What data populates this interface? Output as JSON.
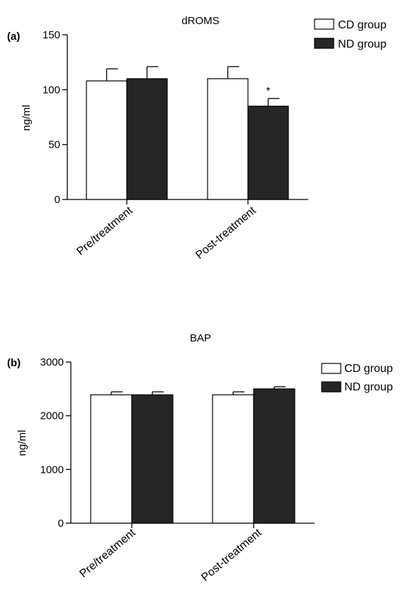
{
  "chart_data": [
    {
      "panel_label": "(a)",
      "type": "bar",
      "title": "dROMS",
      "ylabel": "ng/ml",
      "xlabel": "",
      "categories": [
        "Pre/treatment",
        "Post-treatment"
      ],
      "ylim": [
        0,
        150
      ],
      "yticks": [
        0,
        50,
        100,
        150
      ],
      "grid": false,
      "legend_position": "top-right",
      "series": [
        {
          "name": "CD group",
          "fill": "#ffffff",
          "values": [
            108,
            110
          ],
          "errors": [
            11,
            11
          ]
        },
        {
          "name": "ND group",
          "fill": "#262626",
          "values": [
            110,
            85
          ],
          "errors": [
            11,
            7
          ]
        }
      ],
      "annotations": [
        {
          "text": "*",
          "category": "Post-treatment",
          "series": "ND group"
        }
      ]
    },
    {
      "panel_label": "(b)",
      "type": "bar",
      "title": "BAP",
      "ylabel": "ng/ml",
      "xlabel": "",
      "categories": [
        "Pre/treatment",
        "Post-treatment"
      ],
      "ylim": [
        0,
        3000
      ],
      "yticks": [
        0,
        1000,
        2000,
        3000
      ],
      "grid": false,
      "legend_position": "top-right",
      "series": [
        {
          "name": "CD group",
          "fill": "#ffffff",
          "values": [
            2390,
            2390
          ],
          "errors": [
            55,
            55
          ]
        },
        {
          "name": "ND group",
          "fill": "#262626",
          "values": [
            2390,
            2500
          ],
          "errors": [
            55,
            40
          ]
        }
      ],
      "annotations": []
    }
  ]
}
